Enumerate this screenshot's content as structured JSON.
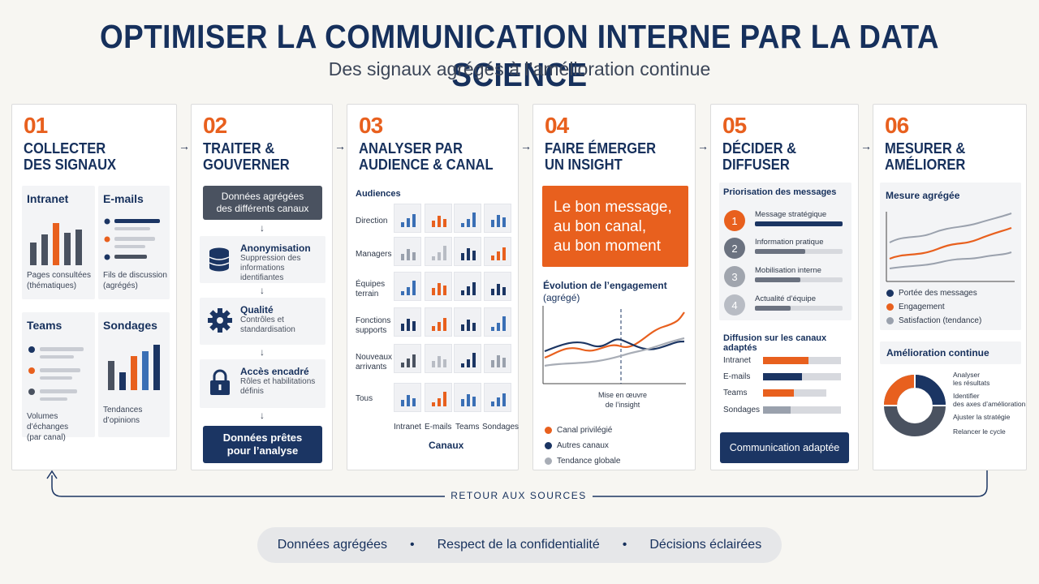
{
  "title": "OPTIMISER LA COMMUNICATION INTERNE PAR LA DATA SCIENCE",
  "subtitle": "Des signaux agrégés à l’amélioration continue",
  "steps": [
    {
      "num": "01",
      "title1": "COLLECTER",
      "title2": "DES SIGNAUX"
    },
    {
      "num": "02",
      "title1": "TRAITER &",
      "title2": "GOUVERNER"
    },
    {
      "num": "03",
      "title1": "ANALYSER PAR",
      "title2": "AUDIENCE & CANAL"
    },
    {
      "num": "04",
      "title1": "FAIRE ÉMERGER",
      "title2": "UN INSIGHT"
    },
    {
      "num": "05",
      "title1": "DÉCIDER &",
      "title2": "DIFFUSER"
    },
    {
      "num": "06",
      "title1": "MESURER &",
      "title2": "AMÉLIORER"
    }
  ],
  "collect": {
    "intranet": {
      "title": "Intranet",
      "caption1": "Pages consultées",
      "caption2": "(thématiques)"
    },
    "emails": {
      "title": "E-mails",
      "caption1": "Fils de discussion",
      "caption2": "(agrégés)"
    },
    "teams": {
      "title": "Teams",
      "caption1": "Volumes d’échanges",
      "caption2": "(par canal)"
    },
    "sondages": {
      "title": "Sondages",
      "caption1": "Tendances",
      "caption2": "d’opinions"
    }
  },
  "process": {
    "top1": "Données agrégées",
    "top2": "des différents canaux",
    "items": [
      {
        "title": "Anonymisation",
        "sub1": "Suppression des",
        "sub2": "informations identifiantes"
      },
      {
        "title": "Qualité",
        "sub1": "Contrôles et",
        "sub2": "standardisation"
      },
      {
        "title": "Accès encadré",
        "sub1": "Rôles et habilitations",
        "sub2": "définis"
      }
    ],
    "bottom1": "Données prêtes",
    "bottom2": "pour l’analyse"
  },
  "analyse": {
    "audiences_label": "Audiences",
    "rows": [
      {
        "l1": "Direction",
        "l2": ""
      },
      {
        "l1": "Managers",
        "l2": ""
      },
      {
        "l1": "Équipes",
        "l2": "terrain"
      },
      {
        "l1": "Fonctions",
        "l2": "supports"
      },
      {
        "l1": "Nouveaux",
        "l2": "arrivants"
      },
      {
        "l1": "Tous",
        "l2": ""
      }
    ],
    "channels": [
      "Intranet",
      "E-mails",
      "Teams",
      "Sondages"
    ],
    "channels_label": "Canaux"
  },
  "insight": {
    "line1": "Le bon message,",
    "line2": "au bon canal,",
    "line3": "au bon moment",
    "chart_title1": "Évolution de l’engagement",
    "chart_title2": "(agrégé)",
    "marker1": "Mise en œuvre",
    "marker2": "de l’insight",
    "legend": [
      "Canal privilégié",
      "Autres canaux",
      "Tendance globale"
    ]
  },
  "decide": {
    "prio_title": "Priorisation des messages",
    "prio": [
      {
        "n": "1",
        "label": "Message stratégique"
      },
      {
        "n": "2",
        "label": "Information pratique"
      },
      {
        "n": "3",
        "label": "Mobilisation interne"
      },
      {
        "n": "4",
        "label": "Actualité d’équipe"
      }
    ],
    "diff_title": "Diffusion sur les canaux adaptés",
    "channels": [
      "Intranet",
      "E-mails",
      "Teams",
      "Sondages"
    ],
    "button": "Communication adaptée"
  },
  "measure": {
    "mesure_title": "Mesure agrégée",
    "legend": [
      "Portée des messages",
      "Engagement",
      "Satisfaction (tendance)"
    ],
    "improve_title": "Amélioration continue",
    "steps": [
      {
        "l1": "Analyser",
        "l2": "les résultats"
      },
      {
        "l1": "Identifier",
        "l2": "des axes d’amélioration"
      },
      {
        "l1": "Ajuster la stratégie",
        "l2": ""
      },
      {
        "l1": "Relancer le cycle",
        "l2": ""
      }
    ]
  },
  "loop_label": "RETOUR AUX SOURCES",
  "footer": [
    "Données agrégées",
    "Respect de la confidentialité",
    "Décisions éclairées"
  ],
  "colors": {
    "navy": "#1b3563",
    "orange": "#e8601e",
    "grey": "#9aa1ad",
    "blue": "#3a6fb5"
  }
}
